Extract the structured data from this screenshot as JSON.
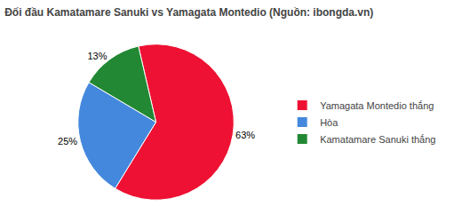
{
  "chart_data": {
    "type": "pie",
    "title": "Đối đầu Kamatamare Sanuki vs Yamagata Montedio (Nguồn: ibongda.vn)",
    "categories": [
      "Yamagata Montedio thắng",
      "Hòa",
      "Kamatamare Sanuki thắng"
    ],
    "values": [
      63,
      25,
      13
    ],
    "value_labels": [
      "63%",
      "25%",
      "13%"
    ],
    "colors": [
      "#ee1133",
      "#4488dd",
      "#228833"
    ],
    "data_labels": true,
    "legend": "right"
  }
}
